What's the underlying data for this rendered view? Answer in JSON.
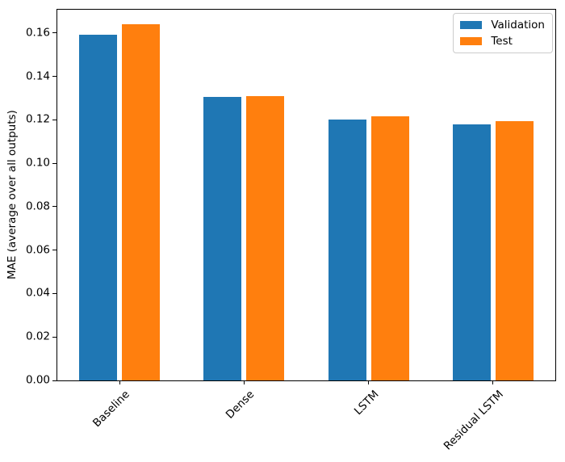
{
  "chart_data": {
    "type": "bar",
    "categories": [
      "Baseline",
      "Dense",
      "LSTM",
      "Residual LSTM"
    ],
    "series": [
      {
        "name": "Validation",
        "color": "#1f77b4",
        "values": [
          0.159,
          0.1305,
          0.12,
          0.118
        ]
      },
      {
        "name": "Test",
        "color": "#ff7f0e",
        "values": [
          0.164,
          0.131,
          0.1215,
          0.1193
        ]
      }
    ],
    "title": "",
    "xlabel": "",
    "ylabel": "MAE (average over all outputs)",
    "ylim": [
      0,
      0.1707
    ],
    "yticks": [
      0,
      0.02,
      0.04,
      0.06,
      0.08,
      0.1,
      0.12,
      0.14,
      0.16
    ],
    "ytick_labels": [
      "0.00",
      "0.02",
      "0.04",
      "0.06",
      "0.08",
      "0.10",
      "0.12",
      "0.14",
      "0.16"
    ],
    "grid": false,
    "legend_position": "upper right"
  }
}
